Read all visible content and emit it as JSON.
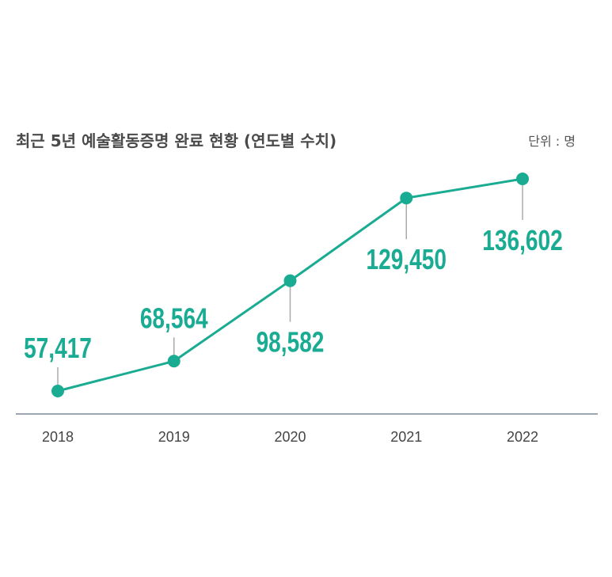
{
  "chart_data": {
    "type": "line",
    "title": "최근 5년 예술활동증명 완료 현황 (연도별 수치)",
    "unit_label": "단위 : 명",
    "categories": [
      "2018",
      "2019",
      "2020",
      "2021",
      "2022"
    ],
    "values": [
      57417,
      68564,
      98582,
      129450,
      136602
    ],
    "value_labels": [
      "57,417",
      "68,564",
      "98,582",
      "129,450",
      "136,602"
    ],
    "label_placement": [
      "above",
      "above",
      "below",
      "below",
      "below"
    ],
    "ylim": [
      50000,
      140000
    ],
    "grid": false,
    "legend": "none",
    "colors": {
      "line": "#1aab93",
      "axis": "#7a8896",
      "leader": "#aaaaaa"
    }
  }
}
